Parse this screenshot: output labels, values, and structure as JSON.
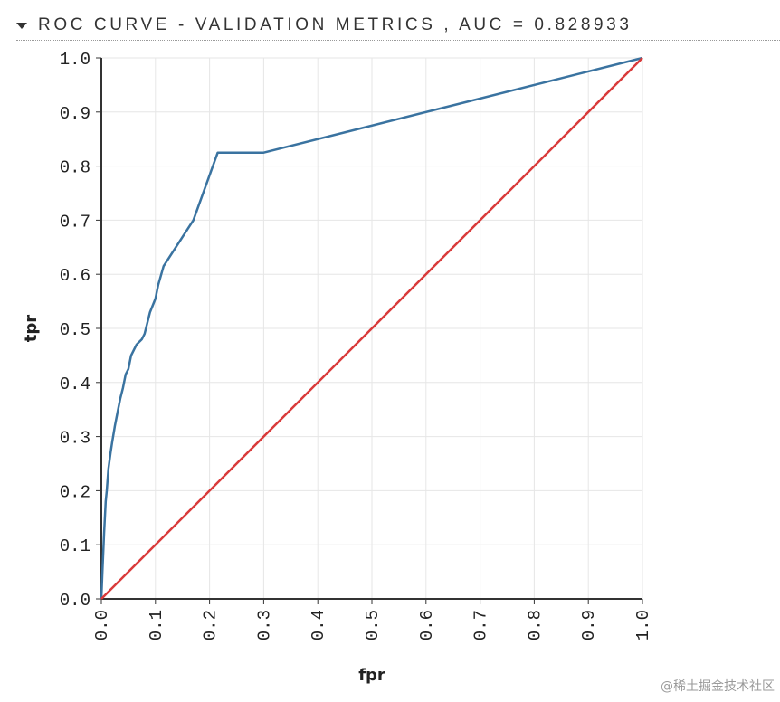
{
  "header": {
    "title": "ROC CURVE - VALIDATION METRICS , AUC = 0.828933"
  },
  "watermark": "@稀土掘金技术社区",
  "colors": {
    "roc": "#3a73a0",
    "diagonal": "#d93a3a",
    "grid": "#e6e6e6",
    "axis": "#333333"
  },
  "chart_data": {
    "type": "line",
    "title": "ROC CURVE - VALIDATION METRICS , AUC = 0.828933",
    "xlabel": "fpr",
    "ylabel": "tpr",
    "xlim": [
      0,
      1
    ],
    "ylim": [
      0,
      1
    ],
    "grid": true,
    "xticks": [
      "0.0",
      "0.1",
      "0.2",
      "0.3",
      "0.4",
      "0.5",
      "0.6",
      "0.7",
      "0.8",
      "0.9",
      "1.0"
    ],
    "yticks": [
      "0.0",
      "0.1",
      "0.2",
      "0.3",
      "0.4",
      "0.5",
      "0.6",
      "0.7",
      "0.8",
      "0.9",
      "1.0"
    ],
    "series": [
      {
        "name": "ROC",
        "x": [
          0,
          0.002,
          0.005,
          0.008,
          0.01,
          0.013,
          0.017,
          0.02,
          0.025,
          0.03,
          0.035,
          0.04,
          0.045,
          0.05,
          0.055,
          0.065,
          0.075,
          0.08,
          0.09,
          0.1,
          0.105,
          0.115,
          0.17,
          0.215,
          0.3,
          1.0
        ],
        "y": [
          0,
          0.05,
          0.12,
          0.18,
          0.2,
          0.24,
          0.27,
          0.29,
          0.32,
          0.345,
          0.37,
          0.39,
          0.415,
          0.425,
          0.45,
          0.47,
          0.48,
          0.49,
          0.53,
          0.555,
          0.58,
          0.615,
          0.7,
          0.825,
          0.825,
          1.0
        ]
      },
      {
        "name": "Diagonal",
        "x": [
          0,
          1
        ],
        "y": [
          0,
          1
        ]
      }
    ]
  }
}
